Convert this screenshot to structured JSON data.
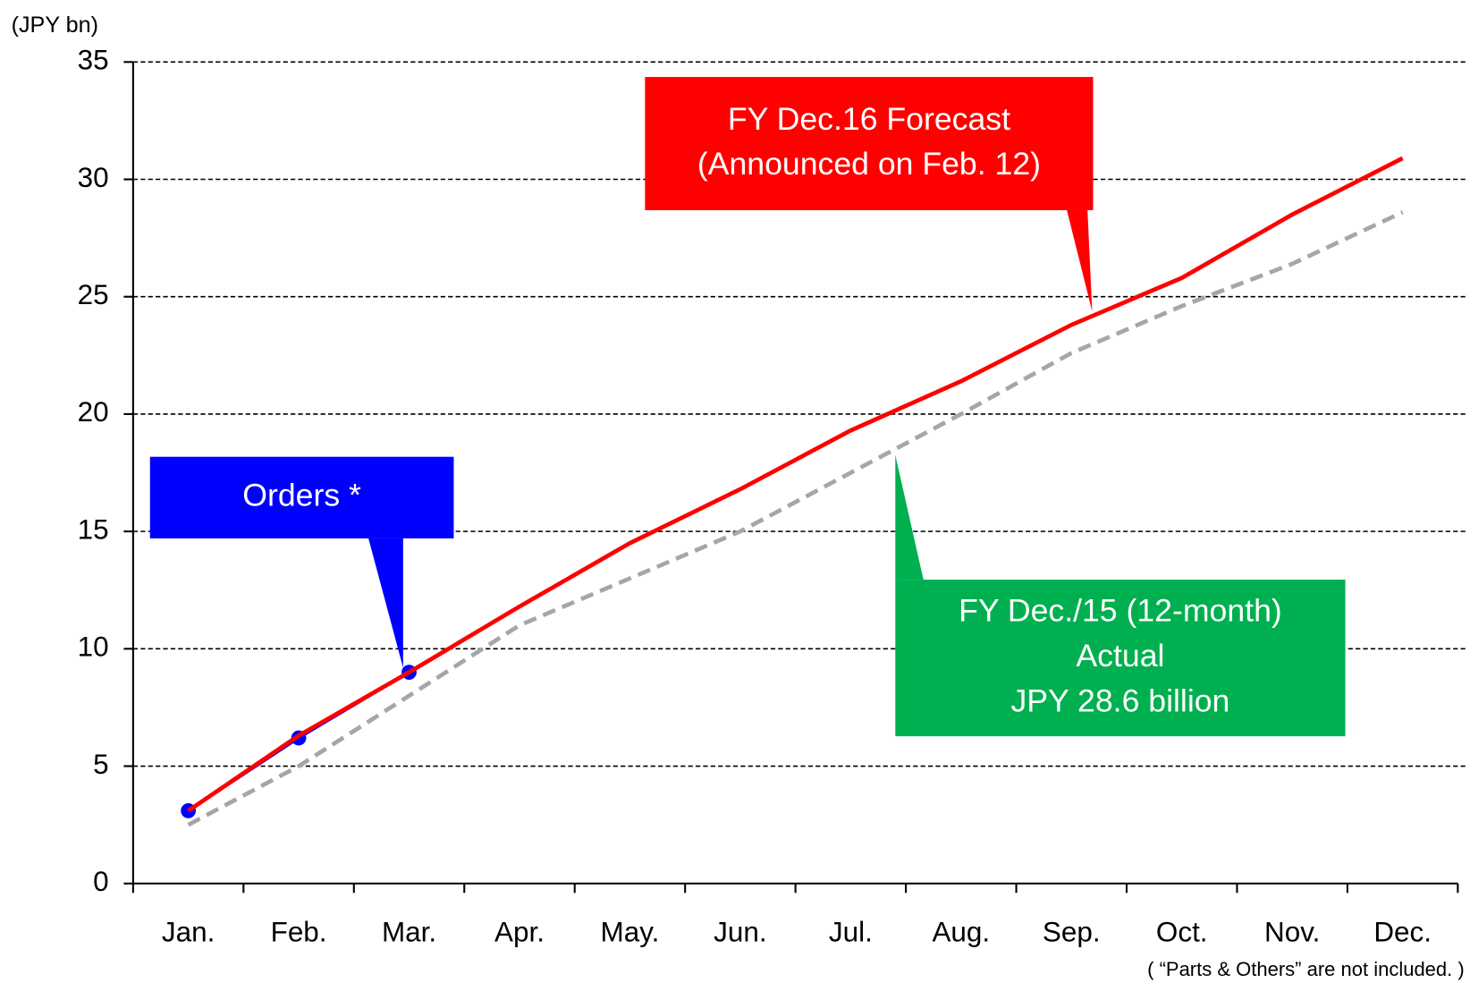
{
  "chart_data": {
    "type": "line",
    "y_unit_label": "(JPY bn)",
    "footnote": "( “Parts & Others” are not included. )",
    "categories": [
      "Jan.",
      "Feb.",
      "Mar.",
      "Apr.",
      "May.",
      "Jun.",
      "Jul.",
      "Aug.",
      "Sep.",
      "Oct.",
      "Nov.",
      "Dec."
    ],
    "ylim": [
      0,
      35
    ],
    "yticks": [
      0,
      5,
      10,
      15,
      20,
      25,
      30,
      35
    ],
    "grid": true,
    "series": [
      {
        "name": "FY Dec./15 (12-month) Actual",
        "color": "#a6a6a6",
        "dashed": true,
        "values": [
          2.5,
          5.0,
          8.0,
          11.0,
          13.0,
          15.0,
          17.5,
          20.0,
          22.6,
          24.6,
          26.4,
          28.6
        ]
      },
      {
        "name": "FY Dec.16 Forecast",
        "color": "#ff0000",
        "values": [
          3.1,
          6.3,
          9.0,
          11.8,
          14.5,
          16.8,
          19.3,
          21.4,
          23.8,
          25.8,
          28.5,
          30.9
        ]
      },
      {
        "name": "Orders",
        "color": "#0000ff",
        "markers": true,
        "values": [
          3.1,
          6.2,
          9.0,
          null,
          null,
          null,
          null,
          null,
          null,
          null,
          null,
          null
        ]
      }
    ],
    "annotations": [
      {
        "lines": [
          "FY Dec.16 Forecast",
          "(Announced on Feb. 12)"
        ],
        "color": "#ff0000"
      },
      {
        "lines": [
          "Orders *"
        ],
        "color": "#0000ff"
      },
      {
        "lines": [
          "FY Dec./15 (12-month)",
          "Actual",
          "JPY 28.6 billion"
        ],
        "color": "#00b050"
      }
    ]
  }
}
